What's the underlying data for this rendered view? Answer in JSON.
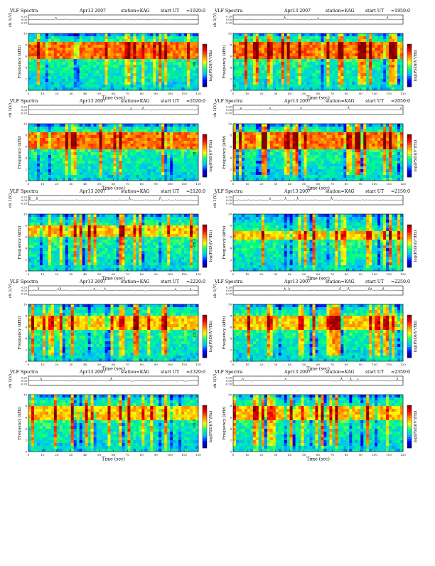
{
  "page": {
    "title_prefix": "VLF Spectra",
    "date": "Apr13 2007",
    "station": "station=KAG",
    "start_label": "start  UT"
  },
  "labels": {
    "waveform_ylabel": "ch 1(V)",
    "spectrogram_ylabel_top": "ch 1",
    "spectrogram_ylabel": "Frequency (kHz)",
    "xlabel": "Time (sec)",
    "colorbar_label": "log(PSD)(V²/Hz)"
  },
  "axes": {
    "time_range": [
      0,
      120
    ],
    "time_ticks": [
      "0",
      "10",
      "20",
      "30",
      "40",
      "50",
      "60",
      "70",
      "80",
      "90",
      "100",
      "110",
      "120"
    ],
    "freq_range": [
      0,
      10
    ],
    "freq_ticks": [
      "0",
      "2",
      "4",
      "6",
      "8",
      "10"
    ],
    "waveform_ticks": [
      "0.20",
      "0.00",
      "-0.20"
    ]
  },
  "colormap": {
    "stops": [
      "#000080",
      "#0000ff",
      "#00c0ff",
      "#00ff80",
      "#ffff00",
      "#ff8000",
      "#ff0000",
      "#800000"
    ]
  },
  "chart_data": [
    {
      "type": "heatmap",
      "start_ut": "=1920:0",
      "dominant_band_khz": [
        5.5,
        8.5
      ],
      "intensity": "high",
      "xlim": [
        0,
        120
      ],
      "ylim": [
        0,
        10
      ]
    },
    {
      "type": "heatmap",
      "start_ut": "=1950:0",
      "dominant_band_khz": [
        5.5,
        8.5
      ],
      "intensity": "high",
      "xlim": [
        0,
        120
      ],
      "ylim": [
        0,
        10
      ]
    },
    {
      "type": "heatmap",
      "start_ut": "=2020:0",
      "dominant_band_khz": [
        5.5,
        8.5
      ],
      "intensity": "high",
      "xlim": [
        0,
        120
      ],
      "ylim": [
        0,
        10
      ]
    },
    {
      "type": "heatmap",
      "start_ut": "=2050:0",
      "dominant_band_khz": [
        5.5,
        8.5
      ],
      "intensity": "high",
      "xlim": [
        0,
        120
      ],
      "ylim": [
        0,
        10
      ]
    },
    {
      "type": "heatmap",
      "start_ut": "=2120:0",
      "dominant_band_khz": [
        6,
        8
      ],
      "intensity": "medium",
      "xlim": [
        0,
        120
      ],
      "ylim": [
        0,
        10
      ]
    },
    {
      "type": "heatmap",
      "start_ut": "=2150:0",
      "dominant_band_khz": [
        5.5,
        7
      ],
      "intensity": "medium",
      "xlim": [
        0,
        120
      ],
      "ylim": [
        0,
        10
      ]
    },
    {
      "type": "heatmap",
      "start_ut": "=2220:0",
      "dominant_band_khz": [
        5.5,
        8
      ],
      "intensity": "medium",
      "xlim": [
        0,
        120
      ],
      "ylim": [
        0,
        10
      ]
    },
    {
      "type": "heatmap",
      "start_ut": "=2250:0",
      "dominant_band_khz": [
        5.5,
        8
      ],
      "intensity": "medium",
      "xlim": [
        0,
        120
      ],
      "ylim": [
        0,
        10
      ]
    },
    {
      "type": "heatmap",
      "start_ut": "=2320:0",
      "dominant_band_khz": [
        5.5,
        8
      ],
      "intensity": "medium",
      "xlim": [
        0,
        120
      ],
      "ylim": [
        0,
        10
      ]
    },
    {
      "type": "heatmap",
      "start_ut": "=2350:0",
      "dominant_band_khz": [
        5.5,
        8
      ],
      "intensity": "medium",
      "xlim": [
        0,
        120
      ],
      "ylim": [
        0,
        10
      ]
    }
  ]
}
